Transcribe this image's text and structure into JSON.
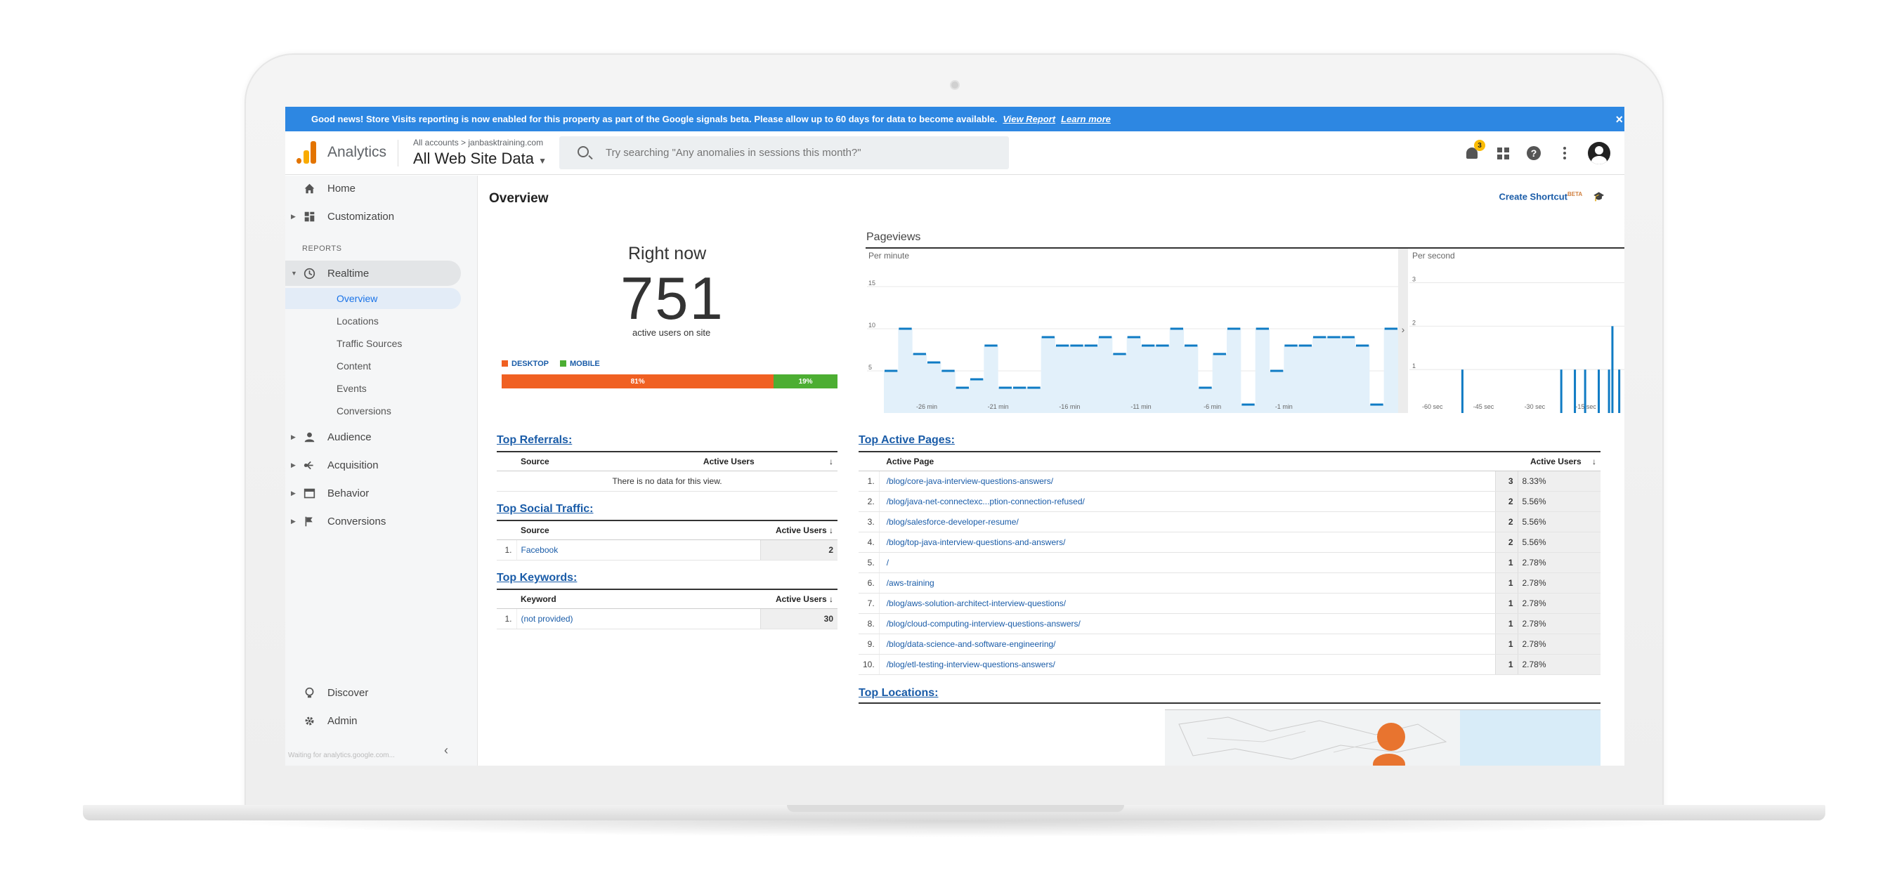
{
  "banner": {
    "text": "Good news! Store Visits reporting is now enabled for this property as part of the Google signals beta. Please allow up to 60 days for data to become available.",
    "view_report": "View Report",
    "learn_more": "Learn more",
    "close": "×"
  },
  "header": {
    "app_name": "Analytics",
    "account_breadcrumb": "All accounts > janbasktraining.com",
    "view_name": "All Web Site Data",
    "search_placeholder": "Try searching \"Any anomalies in sessions this month?\"",
    "notification_count": "3"
  },
  "sidebar": {
    "items": [
      {
        "label": "Home"
      },
      {
        "label": "Customization"
      },
      {
        "label": "Realtime"
      },
      {
        "label": "Audience"
      },
      {
        "label": "Acquisition"
      },
      {
        "label": "Behavior"
      },
      {
        "label": "Conversions"
      },
      {
        "label": "Discover"
      },
      {
        "label": "Admin"
      }
    ],
    "section_label": "REPORTS",
    "realtime_sub": [
      {
        "label": "Overview"
      },
      {
        "label": "Locations"
      },
      {
        "label": "Traffic Sources"
      },
      {
        "label": "Content"
      },
      {
        "label": "Events"
      },
      {
        "label": "Conversions"
      }
    ],
    "status_text": "Waiting for analytics.google.com..."
  },
  "overview": {
    "title": "Overview",
    "create_shortcut": "Create Shortcut",
    "beta": "BETA",
    "right_now": "Right now",
    "active_users": "751",
    "active_users_label": "active users on site",
    "legend": {
      "desktop": "DESKTOP",
      "mobile": "MOBILE"
    },
    "device_split": [
      {
        "label": "81%",
        "value": 81,
        "color": "#f06022"
      },
      {
        "label": "19%",
        "value": 19,
        "color": "#4cae32"
      }
    ]
  },
  "chart_data": {
    "type": "bar",
    "title": "Pageviews",
    "panels": [
      {
        "name": "Per minute",
        "yticks": [
          "15",
          "10",
          "5"
        ],
        "ylim": [
          0,
          17
        ],
        "xticks": [
          "-26 min",
          "-21 min",
          "-16 min",
          "-11 min",
          "-6 min",
          "-1 min"
        ],
        "values": [
          5,
          10,
          7,
          6,
          5,
          3,
          4,
          8,
          3,
          3,
          3,
          9,
          8,
          8,
          8,
          9,
          7,
          9,
          8,
          8,
          10,
          8,
          3,
          7,
          10,
          1,
          10,
          5,
          8,
          8,
          9,
          9,
          9,
          8,
          1,
          10
        ]
      },
      {
        "name": "Per second",
        "yticks": [
          "3",
          "2",
          "1"
        ],
        "ylim": [
          0,
          3.3
        ],
        "xticks": [
          "-60 sec",
          "-45 sec",
          "-30 sec",
          "-15 sec"
        ],
        "values": [
          0,
          0,
          0,
          0,
          0,
          0,
          0,
          0,
          0,
          0,
          0,
          0,
          0,
          0,
          1,
          0,
          0,
          0,
          0,
          0,
          0,
          0,
          0,
          0,
          0,
          0,
          0,
          0,
          0,
          0,
          0,
          0,
          0,
          0,
          0,
          0,
          0,
          0,
          0,
          0,
          0,
          0,
          0,
          1,
          0,
          0,
          0,
          1,
          0,
          0,
          1,
          0,
          0,
          0,
          1,
          0,
          0,
          1,
          2,
          0,
          1
        ]
      }
    ]
  },
  "top_referrals": {
    "title": "Top Referrals:",
    "columns": [
      "Source",
      "Active Users"
    ],
    "empty": "There is no data for this view."
  },
  "top_social": {
    "title": "Top Social Traffic:",
    "columns": [
      "Source",
      "Active Users"
    ],
    "rows": [
      {
        "idx": "1.",
        "source": "Facebook",
        "users": "2"
      }
    ]
  },
  "top_keywords": {
    "title": "Top Keywords:",
    "columns": [
      "Keyword",
      "Active Users"
    ],
    "rows": [
      {
        "idx": "1.",
        "keyword": "(not provided)",
        "users": "30"
      }
    ]
  },
  "top_pages": {
    "title": "Top Active Pages:",
    "columns": [
      "Active Page",
      "Active Users"
    ],
    "rows": [
      {
        "idx": "1.",
        "page": "/blog/core-java-interview-questions-answers/",
        "users": "3",
        "pct": "8.33%"
      },
      {
        "idx": "2.",
        "page": "/blog/java-net-connectexc...ption-connection-refused/",
        "users": "2",
        "pct": "5.56%"
      },
      {
        "idx": "3.",
        "page": "/blog/salesforce-developer-resume/",
        "users": "2",
        "pct": "5.56%"
      },
      {
        "idx": "4.",
        "page": "/blog/top-java-interview-questions-and-answers/",
        "users": "2",
        "pct": "5.56%"
      },
      {
        "idx": "5.",
        "page": "/",
        "users": "1",
        "pct": "2.78%"
      },
      {
        "idx": "6.",
        "page": "/aws-training",
        "users": "1",
        "pct": "2.78%"
      },
      {
        "idx": "7.",
        "page": "/blog/aws-solution-architect-interview-questions/",
        "users": "1",
        "pct": "2.78%"
      },
      {
        "idx": "8.",
        "page": "/blog/cloud-computing-interview-questions-answers/",
        "users": "1",
        "pct": "2.78%"
      },
      {
        "idx": "9.",
        "page": "/blog/data-science-and-software-engineering/",
        "users": "1",
        "pct": "2.78%"
      },
      {
        "idx": "10.",
        "page": "/blog/etl-testing-interview-questions-answers/",
        "users": "1",
        "pct": "2.78%"
      }
    ]
  },
  "top_locations": {
    "title": "Top Locations:"
  },
  "colors": {
    "banner": "#2d87e2",
    "link": "#1a5ca8",
    "bar": "#0f7bc4",
    "desktop": "#f06022",
    "mobile": "#4cae32"
  }
}
